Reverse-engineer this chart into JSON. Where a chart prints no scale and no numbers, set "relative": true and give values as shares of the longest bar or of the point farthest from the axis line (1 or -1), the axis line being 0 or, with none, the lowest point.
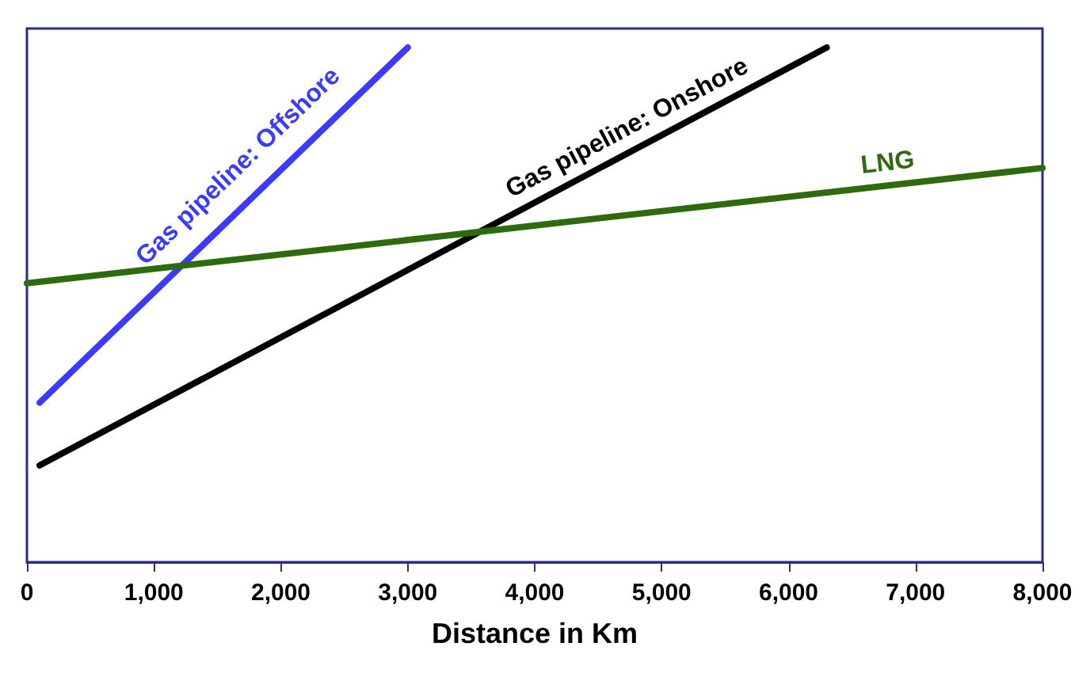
{
  "chart_data": {
    "type": "line",
    "relative": true,
    "xlabel": "Distance in Km",
    "xlim": [
      0,
      8000
    ],
    "xticks": [
      0,
      {
        "value": 1000,
        "label": "1,000"
      },
      {
        "value": 2000,
        "label": "2,000"
      },
      {
        "value": 3000,
        "label": "3,000"
      },
      {
        "value": 4000,
        "label": "4,000"
      },
      {
        "value": 5000,
        "label": "5,000"
      },
      {
        "value": 6000,
        "label": "6,000"
      },
      {
        "value": 7000,
        "label": "7,000"
      },
      {
        "value": 8000,
        "label": "8,000"
      }
    ],
    "tick_labels": "x",
    "line_style": "solid",
    "series": [
      {
        "name": "Gas pipeline: Offshore",
        "color": "#3b3bff",
        "x": [
          100,
          3000
        ],
        "values": [
          0.31,
          1.0
        ]
      },
      {
        "name": "Gas pipeline: Onshore",
        "color": "#000000",
        "x": [
          100,
          6300
        ],
        "values": [
          0.188,
          1.0
        ]
      },
      {
        "name": "LNG",
        "color": "#2e6b0e",
        "x": [
          0,
          8000
        ],
        "values": [
          0.542,
          0.766
        ]
      }
    ]
  }
}
